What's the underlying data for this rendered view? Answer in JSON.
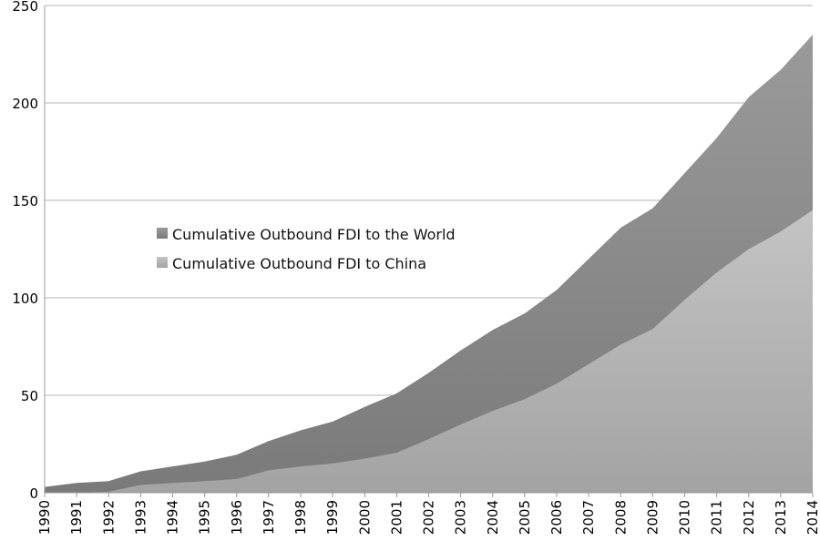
{
  "chart_data": {
    "type": "area",
    "title": "",
    "xlabel": "",
    "ylabel": "",
    "ylim": [
      0,
      250
    ],
    "yticks": [
      0,
      50,
      100,
      150,
      200,
      250
    ],
    "grid": true,
    "legend_placement": "center-left",
    "categories": [
      "1990",
      "1991",
      "1992",
      "1993",
      "1994",
      "1995",
      "1996",
      "1997",
      "1998",
      "1999",
      "2000",
      "2001",
      "2002",
      "2003",
      "2004",
      "2005",
      "2006",
      "2007",
      "2008",
      "2009",
      "2010",
      "2011",
      "2012",
      "2013",
      "2014"
    ],
    "series": [
      {
        "name": "Cumulative Outbound FDI to the World",
        "color": "#8a8a8a",
        "values": [
          3,
          5,
          6,
          11,
          13.5,
          16,
          19.5,
          26.5,
          32,
          36.5,
          44,
          51,
          61.5,
          73,
          83.5,
          92,
          104,
          120,
          136,
          146,
          164,
          182,
          203,
          217,
          235
        ]
      },
      {
        "name": "Cumulative Outbound FDI to China",
        "color": "#b5b5b5",
        "values": [
          0,
          0,
          0.5,
          4,
          5,
          6,
          7,
          11.5,
          13.5,
          15,
          17.5,
          20.5,
          27.5,
          35,
          42,
          48,
          56,
          66,
          76,
          84,
          99,
          113,
          125,
          134,
          145
        ]
      }
    ]
  }
}
